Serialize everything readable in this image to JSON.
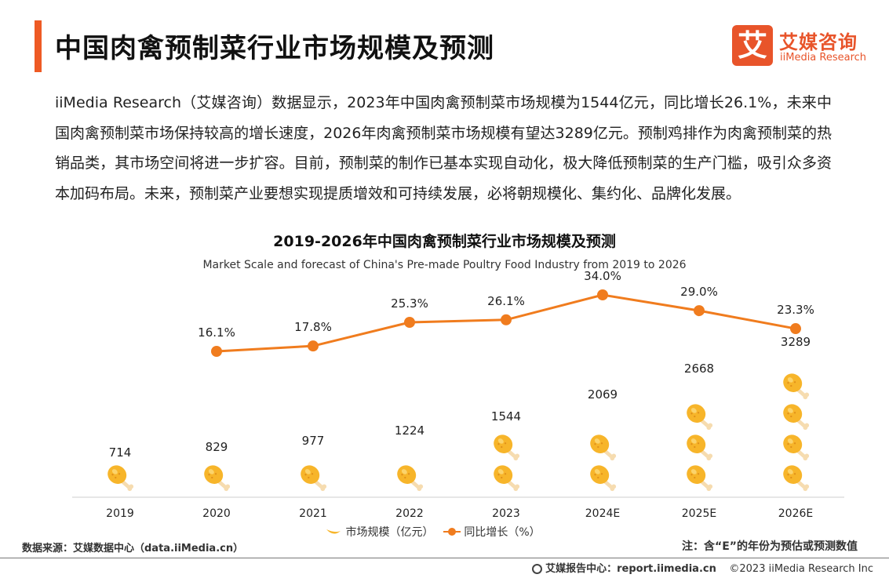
{
  "header": {
    "title": "中国肉禽预制菜行业市场规模及预测"
  },
  "logo": {
    "mark": "艾",
    "cn": "艾媒咨询",
    "en": "iiMedia Research"
  },
  "intro": "iiMedia Research（艾媒咨询）数据显示，2023年中国肉禽预制菜市场规模为1544亿元，同比增长26.1%，未来中国肉禽预制菜市场保持较高的增长速度，2026年肉禽预制菜市场规模有望达3289亿元。预制鸡排作为肉禽预制菜的热销品类，其市场空间将进一步扩容。目前，预制菜的制作已基本实现自动化，极大降低预制菜的生产门槛，吸引众多资本加码布局。未来，预制菜产业要想实现提质增效和可持续发展，必将朝规模化、集约化、品牌化发展。",
  "colors": {
    "accent": "#ee5a24",
    "line": "#f07c1e",
    "drumstick": "#f7b52a",
    "bone": "#f6dcb0"
  },
  "chart_data": {
    "type": "bar",
    "title": "2019-2026年中国肉禽预制菜行业市场规模及预测",
    "subtitle": "Market Scale and forecast of China's Pre-made Poultry Food Industry from 2019 to 2026",
    "categories": [
      "2019",
      "2020",
      "2021",
      "2022",
      "2023",
      "2024E",
      "2025E",
      "2026E"
    ],
    "series": [
      {
        "name": "市场规模（亿元）",
        "type": "pictorial-bar",
        "icon": "drumstick-icon",
        "values": [
          714,
          829,
          977,
          1224,
          1544,
          2069,
          2668,
          3289
        ],
        "labels": [
          "714",
          "829",
          "977",
          "1224",
          "1544",
          "2069",
          "2668",
          "3289"
        ]
      },
      {
        "name": "同比增长（%）",
        "type": "line",
        "values": [
          null,
          16.1,
          17.8,
          25.3,
          26.1,
          34.0,
          29.0,
          23.3
        ],
        "labels": [
          "",
          "16.1%",
          "17.8%",
          "25.3%",
          "26.1%",
          "34.0%",
          "29.0%",
          "23.3%"
        ]
      }
    ],
    "legend_position": "bottom-center",
    "grid": false
  },
  "source": "数据来源：艾媒数据中心（data.iiMedia.cn）",
  "note": "注：含“E”的年份为预估或预测数值",
  "footer": {
    "site": "艾媒报告中心：report.iimedia.cn",
    "copyright": "©2023  iiMedia Research  Inc"
  }
}
